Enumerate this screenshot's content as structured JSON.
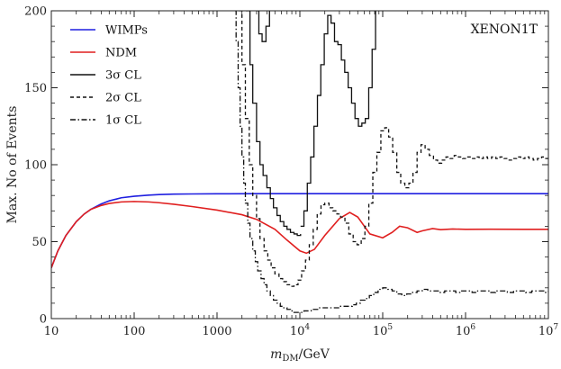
{
  "chart_data": {
    "type": "line",
    "title": "",
    "annotation": "XENON1T",
    "xlabel": "m_DM/GeV",
    "xlabel_main": "m",
    "xlabel_sub": "DM",
    "xlabel_tail": "/GeV",
    "ylabel": "Max. No of Events",
    "xscale": "log",
    "xlim": [
      10,
      10000000
    ],
    "ylim": [
      0,
      200
    ],
    "grid": false,
    "legend_position": "top-left",
    "x_ticks": [
      {
        "value": 10,
        "label": "10"
      },
      {
        "value": 100,
        "label": "100"
      },
      {
        "value": 1000,
        "label": "1000"
      },
      {
        "value": 10000,
        "base": "10",
        "exp": "4"
      },
      {
        "value": 100000,
        "base": "10",
        "exp": "5"
      },
      {
        "value": 1000000,
        "base": "10",
        "exp": "6"
      },
      {
        "value": 10000000,
        "base": "10",
        "exp": "7"
      }
    ],
    "y_ticks": [
      {
        "value": 0,
        "label": "0"
      },
      {
        "value": 50,
        "label": "50"
      },
      {
        "value": 100,
        "label": "100"
      },
      {
        "value": 150,
        "label": "150"
      },
      {
        "value": 200,
        "label": "200"
      }
    ],
    "legend": [
      {
        "key": "wimps",
        "label": "WIMPs",
        "style": "solid",
        "color": "#1f1fe0"
      },
      {
        "key": "ndm",
        "label": "NDM",
        "style": "solid",
        "color": "#e01f1f"
      },
      {
        "key": "cl3",
        "label": "3σ CL",
        "style": "solid",
        "color": "#111111"
      },
      {
        "key": "cl2",
        "label": "2σ CL",
        "style": "dashed",
        "color": "#111111"
      },
      {
        "key": "cl1",
        "label": "1σ CL",
        "style": "dashdot",
        "color": "#111111"
      }
    ],
    "series": [
      {
        "key": "wimps",
        "name": "WIMPs",
        "color": "#1f1fe0",
        "style": "solid",
        "step": false,
        "x": [
          10,
          12,
          15,
          20,
          25,
          30,
          40,
          50,
          70,
          100,
          150,
          200,
          300,
          500,
          1000,
          3000,
          10000,
          100000,
          1000000,
          10000000
        ],
        "y": [
          33,
          44,
          54,
          63,
          68,
          71,
          74.5,
          76.5,
          78.5,
          79.5,
          80.2,
          80.6,
          80.9,
          81.0,
          81.1,
          81.2,
          81.2,
          81.2,
          81.2,
          81.2
        ]
      },
      {
        "key": "ndm",
        "name": "NDM",
        "color": "#e01f1f",
        "style": "solid",
        "step": false,
        "x": [
          10,
          12,
          15,
          20,
          25,
          30,
          40,
          50,
          70,
          100,
          150,
          200,
          300,
          500,
          1000,
          2000,
          3000,
          5000,
          7000,
          10000,
          12000,
          15000,
          20000,
          30000,
          40000,
          50000,
          70000,
          100000,
          130000,
          160000,
          200000,
          260000,
          300000,
          400000,
          500000,
          700000,
          1000000,
          2000000,
          5000000,
          10000000
        ],
        "y": [
          33,
          44,
          54,
          63,
          68,
          71,
          73.5,
          74.8,
          75.8,
          76.1,
          75.8,
          75.3,
          74.3,
          72.8,
          70.5,
          67.5,
          64.5,
          58,
          51,
          44,
          42.5,
          45,
          54,
          65,
          69,
          66,
          55,
          52.5,
          56,
          60,
          59,
          56,
          57,
          58.5,
          57.8,
          58.2,
          58,
          58.1,
          58,
          58
        ]
      },
      {
        "key": "cl3_left",
        "name": "3σ CL",
        "color": "#111111",
        "style": "solid",
        "step": true,
        "x": [
          2230,
          2500,
          2700,
          3000,
          3300,
          3600,
          4000,
          4400,
          4800,
          5300,
          5800,
          6400,
          7000,
          7700,
          8500,
          9300,
          10200
        ],
        "y": [
          200,
          165,
          140,
          115,
          100,
          93,
          85,
          78,
          72,
          67,
          63,
          60,
          58,
          56,
          55,
          54,
          55
        ]
      },
      {
        "key": "cl3_right",
        "name": "3σ CL",
        "color": "#111111",
        "style": "solid",
        "step": true,
        "x": [
          10200,
          11200,
          12300,
          13500,
          14800,
          16300,
          17900,
          19700,
          21700,
          23800,
          26200,
          28800,
          31700,
          34800,
          38300,
          42100,
          46300,
          50900,
          56000,
          61600,
          67800,
          74500,
          82000
        ],
        "y": [
          60,
          70,
          88,
          105,
          125,
          145,
          165,
          185,
          197,
          192,
          180,
          178,
          168,
          160,
          150,
          140,
          130,
          125,
          127,
          130,
          150,
          175,
          200
        ]
      },
      {
        "key": "cl3_inner",
        "name": "3σ CL",
        "color": "#111111",
        "style": "solid",
        "step": true,
        "x": [
          3000,
          3200,
          3500,
          3900,
          4300
        ],
        "y": [
          200,
          185,
          180,
          190,
          200
        ]
      },
      {
        "key": "cl2",
        "name": "2σ CL",
        "color": "#111111",
        "style": "dashed",
        "step": true,
        "x": [
          1850,
          2000,
          2200,
          2450,
          2700,
          3000,
          3300,
          3700,
          4100,
          4500,
          5000,
          5600,
          6200,
          6900,
          7700,
          8500,
          9500,
          10500,
          11700,
          13000,
          14500,
          16200,
          18000,
          20000,
          22500,
          25000,
          28000,
          31000,
          35000,
          39000,
          44000,
          49000,
          55000,
          61000,
          68000,
          76000,
          85000,
          95000,
          106000,
          118000,
          132000,
          148000,
          165000,
          185000,
          207000,
          232000,
          260000,
          290000,
          325000,
          365000,
          410000,
          460000,
          515000,
          580000,
          650000,
          730000,
          820000,
          920000,
          1030000,
          1160000,
          1300000,
          1460000,
          1640000,
          1840000,
          2060000,
          2320000,
          2600000,
          2920000,
          3280000,
          3680000,
          4130000,
          4640000,
          5210000,
          5850000,
          6570000,
          7370000,
          8280000,
          9290000,
          10000000
        ],
        "y": [
          200,
          165,
          130,
          100,
          80,
          65,
          52,
          44,
          38,
          33,
          29,
          26,
          24,
          22,
          21,
          22,
          25,
          31,
          38,
          48,
          58,
          68,
          74,
          75,
          72,
          70,
          68,
          66,
          62,
          55,
          50,
          48,
          52,
          60,
          75,
          95,
          108,
          122,
          124,
          118,
          108,
          95,
          88,
          85,
          88,
          95,
          108,
          113,
          110,
          106,
          103,
          101,
          103,
          105,
          104,
          106,
          105,
          104,
          105,
          104,
          105,
          104,
          105,
          104,
          105,
          104,
          105,
          104,
          103,
          104,
          105,
          104,
          105,
          104,
          103,
          104,
          105,
          104,
          103
        ]
      },
      {
        "key": "cl1",
        "name": "1σ CL",
        "color": "#111111",
        "style": "dashdot",
        "step": true,
        "x": [
          1650,
          1700,
          1800,
          1900,
          2000,
          2100,
          2200,
          2350,
          2500,
          2700,
          2900,
          3100,
          3400,
          3700,
          4000,
          4400,
          4800,
          5300,
          5800,
          6400,
          7000,
          7700,
          8500,
          9300,
          10200,
          11200,
          12400,
          13700,
          15200,
          17000,
          19000,
          21500,
          24000,
          27000,
          30000,
          34000,
          38000,
          43000,
          48000,
          54000,
          61000,
          69000,
          78000,
          88000,
          100000,
          115000,
          130000,
          148000,
          170000,
          195000,
          225000,
          260000,
          300000,
          350000,
          410000,
          480000,
          560000,
          650000,
          760000,
          880000,
          1020000,
          1200000,
          1400000,
          1650000,
          1950000,
          2300000,
          2700000,
          3200000,
          3800000,
          4500000,
          5300000,
          6300000,
          7500000,
          8800000,
          10000000
        ],
        "y": [
          200,
          180,
          150,
          125,
          105,
          88,
          75,
          62,
          52,
          44,
          37,
          31,
          26,
          22,
          18,
          15,
          12,
          10,
          8,
          7,
          6,
          5,
          4,
          4,
          4,
          5,
          5,
          6,
          6,
          7,
          7,
          7,
          7,
          7,
          8,
          8,
          8,
          9,
          10,
          12,
          13,
          15,
          17,
          19,
          20,
          19,
          18,
          16,
          15,
          16,
          17,
          18,
          19,
          18,
          18,
          17,
          18,
          18,
          17,
          18,
          18,
          17,
          18,
          18,
          17,
          18,
          18,
          17,
          18,
          18,
          17,
          18,
          18,
          17,
          18
        ]
      }
    ]
  }
}
